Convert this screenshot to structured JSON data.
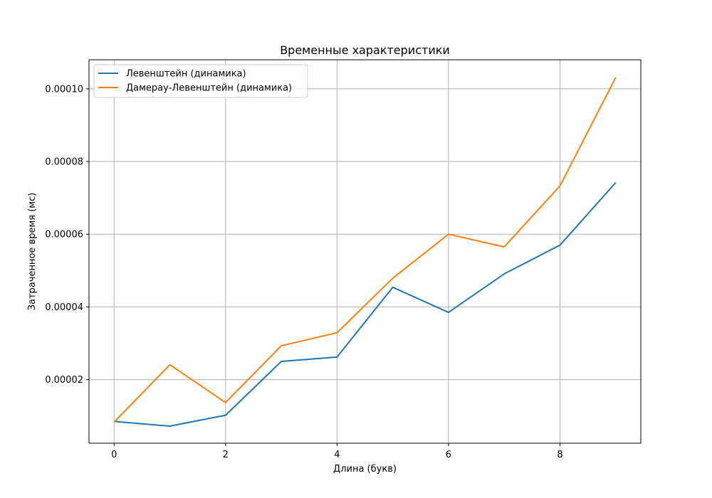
{
  "chart_data": {
    "type": "line",
    "title": "Временные характеристики",
    "xlabel": "Длина (букв)",
    "ylabel": "Затраченное время (мс)",
    "x": [
      0,
      1,
      2,
      3,
      4,
      5,
      6,
      7,
      8,
      9
    ],
    "xlim": [
      -0.45,
      9.45
    ],
    "ylim": [
      2.5e-06,
      0.000108
    ],
    "xticks": [
      0,
      2,
      4,
      6,
      8
    ],
    "xtick_labels": [
      "0",
      "2",
      "4",
      "6",
      "8"
    ],
    "yticks": [
      2e-05,
      4e-05,
      6e-05,
      8e-05,
      0.0001
    ],
    "ytick_labels": [
      "0.00002",
      "0.00004",
      "0.00006",
      "0.00008",
      "0.00010"
    ],
    "grid": true,
    "legend_position": "top-left",
    "series": [
      {
        "name": "Левенштейн (динамика)",
        "color": "#1f77b4",
        "values": [
          8.5e-06,
          7.2e-06,
          1.02e-05,
          2.5e-05,
          2.62e-05,
          4.54e-05,
          3.85e-05,
          4.91e-05,
          5.7e-05,
          7.42e-05
        ]
      },
      {
        "name": "Дамерау-Левенштейн (динамика)",
        "color": "#ff7f0e",
        "values": [
          8.3e-06,
          2.41e-05,
          1.37e-05,
          2.93e-05,
          3.29e-05,
          4.79e-05,
          6e-05,
          5.65e-05,
          7.33e-05,
          0.0001031
        ]
      }
    ]
  }
}
